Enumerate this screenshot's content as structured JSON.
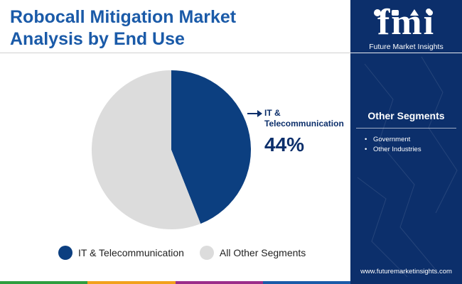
{
  "title_line1": "Robocall Mitigation Market",
  "title_line2": "Analysis by End Use",
  "chart_data": {
    "type": "pie",
    "title": "Robocall Mitigation Market Analysis by End Use",
    "categories": [
      "IT & Telecommunication",
      "All Other Segments"
    ],
    "values": [
      44,
      56
    ],
    "colors": [
      "#0c3f80",
      "#dcdcdc"
    ],
    "callout": {
      "label_line1": "IT &",
      "label_line2": "Telecommunication",
      "value": "44%"
    }
  },
  "legend": {
    "items": [
      {
        "label": "IT & Telecommunication",
        "color": "#0c3f80"
      },
      {
        "label": "All Other Segments",
        "color": "#dcdcdc"
      }
    ]
  },
  "footer_colors": [
    "#2e9d3e",
    "#f2a11c",
    "#9b2d8a",
    "#1a5aa8"
  ],
  "sidebar": {
    "logo_mark": "fmi",
    "logo_subtitle": "Future Market Insights",
    "other_segments_title": "Other Segments",
    "other_segments": [
      "Government",
      "Other Industries"
    ],
    "url": "www.futuremarketinsights.com"
  }
}
